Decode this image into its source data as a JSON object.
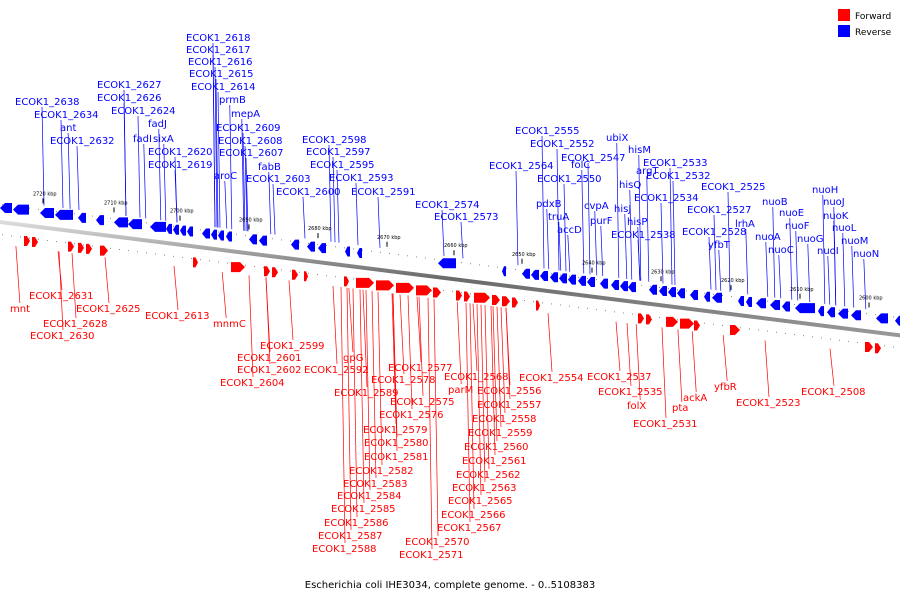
{
  "title": "Escherichia coli IHE3034, complete genome. - 0..5108383",
  "colors": {
    "forward": "#ff0000",
    "reverse": "#0000ff",
    "axis": "#555555"
  },
  "legend": [
    {
      "label": "Forward",
      "strand": "forward",
      "color": "#ff0000"
    },
    {
      "label": "Reverse",
      "strand": "reverse",
      "color": "#0000ff"
    }
  ],
  "axis": {
    "unit": "kbp",
    "direction": "descending left to right",
    "tick_labels": [
      "2720 kbp",
      "2710 kbp",
      "2700 kbp",
      "2690 kbp",
      "2680 kbp",
      "2670 kbp",
      "2660 kbp",
      "2650 kbp",
      "2640 kbp",
      "2630 kbp",
      "2620 kbp",
      "2610 kbp",
      "2600 kbp"
    ]
  },
  "reverse_labels": [
    "ECOK1_2638",
    "ECOK1_2634",
    "ant",
    "ECOK1_2632",
    "ECOK1_2627",
    "ECOK1_2626",
    "ECOK1_2624",
    "fadJ",
    "fadI",
    "sixA",
    "ECOK1_2620",
    "ECOK1_2619",
    "ECOK1_2618",
    "ECOK1_2617",
    "ECOK1_2616",
    "ECOK1_2615",
    "ECOK1_2614",
    "prmB",
    "mepA",
    "ECOK1_2609",
    "ECOK1_2608",
    "ECOK1_2607",
    "aroC",
    "fabB",
    "ECOK1_2603",
    "ECOK1_2600",
    "ECOK1_2598",
    "ECOK1_2597",
    "ECOK1_2595",
    "ECOK1_2593",
    "ECOK1_2591",
    "ECOK1_2574",
    "ECOK1_2573",
    "ECOK1_2564",
    "ECOK1_2555",
    "ECOK1_2552",
    "ECOK1_2550",
    "pdxB",
    "truA",
    "accD",
    "folC",
    "cvpA",
    "purF",
    "ECOK1_2547",
    "ubiX",
    "hisM",
    "argT",
    "hisQ",
    "hisJ",
    "hisP",
    "ECOK1_2534",
    "ECOK1_2533",
    "ECOK1_2532",
    "ECOK1_2538",
    "ECOK1_2525",
    "ECOK1_2527",
    "ECOK1_2528",
    "yfbT",
    "lrhA",
    "nuoA",
    "nuoB",
    "nuoC",
    "nuoE",
    "nuoF",
    "nuoG",
    "nuoH",
    "nuoJ",
    "nuoK",
    "nuoI",
    "nuoL",
    "nuoM",
    "nuoN"
  ],
  "forward_labels": [
    "mnt",
    "ECOK1_2631",
    "ECOK1_2628",
    "ECOK1_2630",
    "ECOK1_2625",
    "ECOK1_2613",
    "mnmC",
    "ECOK1_2599",
    "ECOK1_2601",
    "ECOK1_2602",
    "ECOK1_2604",
    "gpG",
    "ECOK1_2592",
    "ECOK1_2589",
    "ECOK1_2577",
    "ECOK1_2578",
    "ECOK1_2575",
    "ECOK1_2576",
    "ECOK1_2579",
    "ECOK1_2580",
    "ECOK1_2581",
    "ECOK1_2582",
    "ECOK1_2583",
    "ECOK1_2584",
    "ECOK1_2585",
    "ECOK1_2586",
    "ECOK1_2587",
    "ECOK1_2588",
    "ECOK1_2568",
    "parM",
    "ECOK1_2556",
    "ECOK1_2557",
    "ECOK1_2558",
    "ECOK1_2559",
    "ECOK1_2560",
    "ECOK1_2561",
    "ECOK1_2562",
    "ECOK1_2563",
    "ECOK1_2565",
    "ECOK1_2566",
    "ECOK1_2567",
    "ECOK1_2570",
    "ECOK1_2571",
    "ECOK1_2554",
    "ECOK1_2537",
    "ECOK1_2535",
    "folX",
    "ECOK1_2531",
    "pta",
    "ackA",
    "yfbR",
    "ECOK1_2523",
    "ECOK1_2508"
  ]
}
